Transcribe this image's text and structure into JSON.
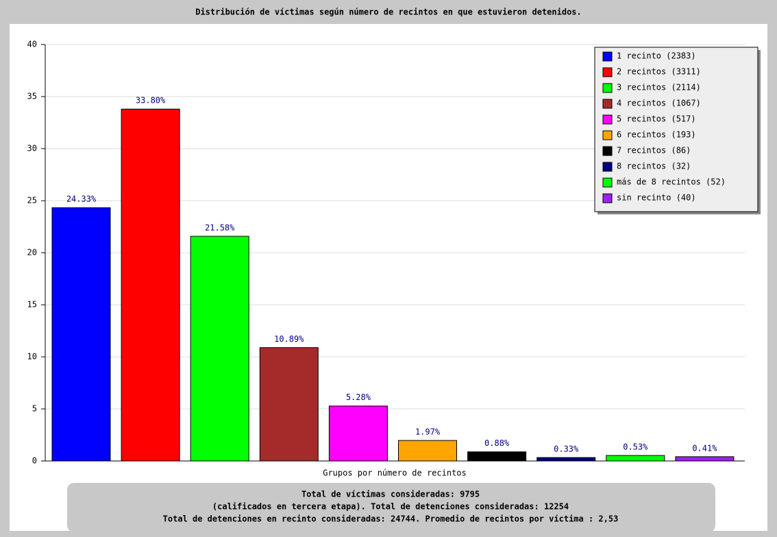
{
  "chart_data": {
    "type": "bar",
    "title": "Distribución de víctimas según número de recintos en que estuvieron detenidos.",
    "x_label": "Grupos por número de recintos",
    "categories": [
      "1 recinto (2383)",
      "2 recintos (3311)",
      "3 recintos (2114)",
      "4 recintos (1067)",
      "5 recintos (517)",
      "6 recintos (193)",
      "7 recintos (86)",
      "8 recintos (32)",
      "más de 8 recintos (52)",
      "sin recinto (40)"
    ],
    "values": [
      24.33,
      33.8,
      21.58,
      10.89,
      5.28,
      1.97,
      0.88,
      0.33,
      0.53,
      0.41
    ],
    "value_labels": [
      "24.33%",
      "33.80%",
      "21.58%",
      "10.89%",
      "5.28%",
      "1.97%",
      "0.88%",
      "0.33%",
      "0.53%",
      "0.41%"
    ],
    "colors": [
      "#0000ff",
      "#ff0000",
      "#00ff00",
      "#a52a2a",
      "#ff00ff",
      "#ffa500",
      "#000000",
      "#000080",
      "#00ff00",
      "#a020f0"
    ],
    "ylim": [
      0,
      40
    ],
    "yticks": [
      0,
      5,
      10,
      15,
      20,
      25,
      30,
      35,
      40
    ],
    "grid": true,
    "legend": "top-right",
    "footer": [
      "Total de víctimas consideradas: 9795",
      "(calificados en tercera etapa). Total de detenciones consideradas: 12254",
      "Total de detenciones en recinto consideradas: 24744. Promedio de recintos por víctima : 2,53"
    ]
  }
}
